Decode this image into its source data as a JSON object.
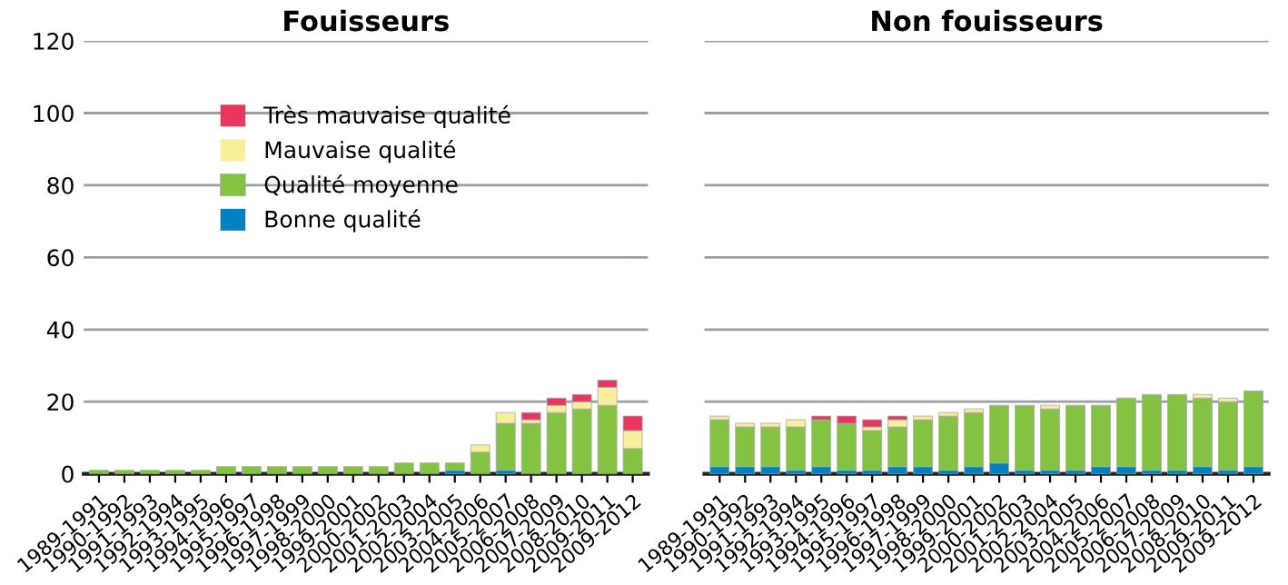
{
  "chart_data": [
    {
      "type": "bar",
      "title": "Fouisseurs",
      "stacked": true,
      "grid": "y",
      "legend": "top",
      "ylim": [
        0,
        120
      ],
      "yticks": [
        0,
        20,
        40,
        60,
        80,
        100,
        120
      ],
      "categories": [
        "1989-1991",
        "1990-1992",
        "1991-1993",
        "1992-1994",
        "1993-1995",
        "1994-1996",
        "1995-1997",
        "1996-1998",
        "1997-1999",
        "1998-2000",
        "1999-2001",
        "2000-2002",
        "2001-2003",
        "2002-2004",
        "2003-2005",
        "2004-2006",
        "2005-2007",
        "2006-2008",
        "2007-2009",
        "2008-2010",
        "2009-2011",
        "2009-2012"
      ],
      "series": [
        {
          "name": "Bonne qualité",
          "color": "#0081c0",
          "values": [
            0,
            0,
            0,
            0,
            0,
            0,
            0,
            0,
            0,
            0,
            0,
            0,
            0,
            0,
            1,
            0,
            1,
            0,
            0,
            0,
            0,
            0
          ]
        },
        {
          "name": "Qualité moyenne",
          "color": "#84c241",
          "values": [
            1,
            1,
            1,
            1,
            1,
            2,
            2,
            2,
            2,
            2,
            2,
            2,
            3,
            3,
            2,
            6,
            13,
            14,
            17,
            18,
            19,
            7
          ]
        },
        {
          "name": "Mauvaise qualité",
          "color": "#f9ef9b",
          "values": [
            0,
            0,
            0,
            0,
            0,
            0,
            0,
            0,
            0,
            0,
            0,
            0,
            0,
            0,
            0,
            2,
            3,
            1,
            2,
            2,
            5,
            5
          ]
        },
        {
          "name": "Très mauvaise qualité",
          "color": "#e8365f",
          "values": [
            0,
            0,
            0,
            0,
            0,
            0,
            0,
            0,
            0,
            0,
            0,
            0,
            0,
            0,
            0,
            0,
            0,
            2,
            2,
            2,
            2,
            4
          ]
        }
      ]
    },
    {
      "type": "bar",
      "title": "Non fouisseurs",
      "stacked": true,
      "grid": "y",
      "tick_labels": "x",
      "ylim": [
        0,
        120
      ],
      "yticks": [
        0,
        20,
        40,
        60,
        80,
        100,
        120
      ],
      "categories": [
        "1989-1991",
        "1990-1992",
        "1991-1993",
        "1992-1994",
        "1993-1995",
        "1994-1996",
        "1995-1997",
        "1996-1998",
        "1997-1999",
        "1998-2000",
        "1999-2001",
        "2000-2002",
        "2001-2003",
        "2002-2004",
        "2003-2005",
        "2004-2006",
        "2005-2007",
        "2006-2008",
        "2007-2009",
        "2008-2010",
        "2009-2011",
        "2009-2012"
      ],
      "series": [
        {
          "color": "#0081c0",
          "values": [
            2,
            2,
            2,
            1,
            2,
            1,
            1,
            2,
            2,
            1,
            2,
            3,
            1,
            1,
            1,
            2,
            2,
            1,
            1,
            2,
            1,
            2
          ]
        },
        {
          "color": "#84c241",
          "values": [
            13,
            11,
            11,
            12,
            13,
            13,
            11,
            11,
            13,
            15,
            15,
            16,
            18,
            17,
            18,
            17,
            19,
            21,
            21,
            19,
            19,
            21
          ]
        },
        {
          "color": "#f9ef9b",
          "values": [
            1,
            1,
            1,
            2,
            0,
            0,
            1,
            2,
            1,
            1,
            1,
            0,
            0,
            1,
            0,
            0,
            0,
            0,
            0,
            1,
            1,
            0
          ]
        },
        {
          "color": "#e8365f",
          "values": [
            0,
            0,
            0,
            0,
            1,
            2,
            2,
            1,
            0,
            0,
            0,
            0,
            0,
            0,
            0,
            0,
            0,
            0,
            0,
            0,
            0,
            0
          ]
        }
      ]
    }
  ]
}
